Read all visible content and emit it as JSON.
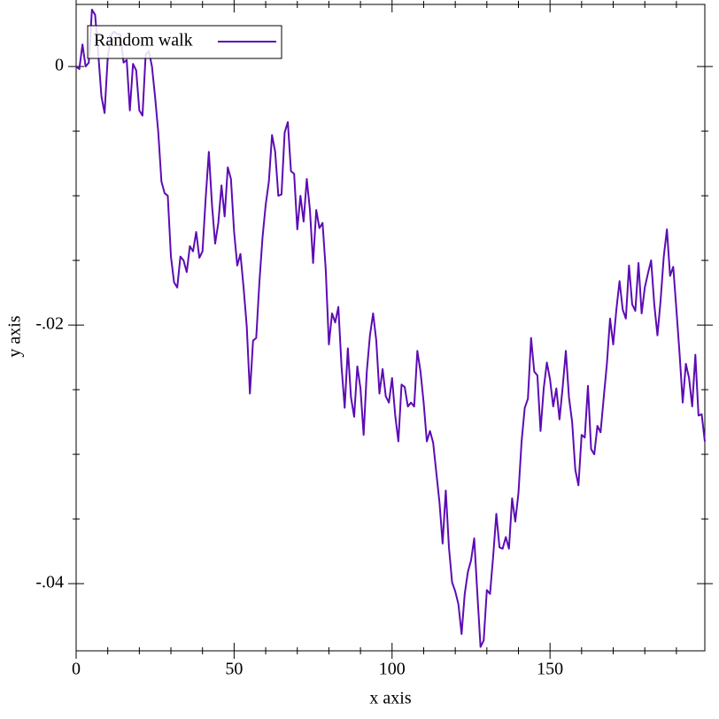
{
  "chart_data": {
    "type": "line",
    "xlabel": "x axis",
    "ylabel": "y axis",
    "x": [
      0,
      1,
      2,
      3,
      4,
      5,
      6,
      7,
      8,
      9,
      10,
      11,
      12,
      13,
      14,
      15,
      16,
      17,
      18,
      19,
      20,
      21,
      22,
      23,
      24,
      25,
      26,
      27,
      28,
      29,
      30,
      31,
      32,
      33,
      34,
      35,
      36,
      37,
      38,
      39,
      40,
      41,
      42,
      43,
      44,
      45,
      46,
      47,
      48,
      49,
      50,
      51,
      52,
      53,
      54,
      55,
      56,
      57,
      58,
      59,
      60,
      61,
      62,
      63,
      64,
      65,
      66,
      67,
      68,
      69,
      70,
      71,
      72,
      73,
      74,
      75,
      76,
      77,
      78,
      79,
      80,
      81,
      82,
      83,
      84,
      85,
      86,
      87,
      88,
      89,
      90,
      91,
      92,
      93,
      94,
      95,
      96,
      97,
      98,
      99,
      100,
      101,
      102,
      103,
      104,
      105,
      106,
      107,
      108,
      109,
      110,
      111,
      112,
      113,
      114,
      115,
      116,
      117,
      118,
      119,
      120,
      121,
      122,
      123,
      124,
      125,
      126,
      127,
      128,
      129,
      130,
      131,
      132,
      133,
      134,
      135,
      136,
      137,
      138,
      139,
      140,
      141,
      142,
      143,
      144,
      145,
      146,
      147,
      148,
      149,
      150,
      151,
      152,
      153,
      154,
      155,
      156,
      157,
      158,
      159,
      160,
      161,
      162,
      163,
      164,
      165,
      166,
      167,
      168,
      169,
      170,
      171,
      172,
      173,
      174,
      175,
      176,
      177,
      178,
      179,
      180,
      181,
      182,
      183,
      184,
      185,
      186,
      187,
      188,
      189,
      190,
      191,
      192,
      193,
      194,
      195,
      196,
      197,
      198,
      199
    ],
    "series": [
      {
        "name": "Random walk",
        "color": "#5c0cb4",
        "values": [
          0,
          -0.0002,
          0.0017,
          0,
          0.0003,
          0.0044,
          0.004,
          0.001,
          -0.0023,
          -0.0036,
          0.0007,
          0.0024,
          0.0027,
          0.0025,
          0.0025,
          0.0003,
          0.0005,
          -0.0034,
          0.0002,
          -0.0003,
          -0.0034,
          -0.0038,
          0.0009,
          0.0012,
          0,
          -0.0024,
          -0.0051,
          -0.0089,
          -0.0098,
          -0.01,
          -0.0147,
          -0.0167,
          -0.0171,
          -0.0147,
          -0.015,
          -0.0159,
          -0.0139,
          -0.0143,
          -0.0128,
          -0.0148,
          -0.0143,
          -0.0102,
          -0.0066,
          -0.0107,
          -0.0137,
          -0.0121,
          -0.0092,
          -0.0116,
          -0.0078,
          -0.0087,
          -0.0128,
          -0.0154,
          -0.0145,
          -0.0171,
          -0.0201,
          -0.0253,
          -0.0212,
          -0.021,
          -0.0167,
          -0.0132,
          -0.0107,
          -0.0089,
          -0.0053,
          -0.0066,
          -0.01,
          -0.0099,
          -0.0051,
          -0.0043,
          -0.0081,
          -0.0083,
          -0.0126,
          -0.01,
          -0.012,
          -0.0087,
          -0.0111,
          -0.0152,
          -0.0111,
          -0.0125,
          -0.0121,
          -0.0157,
          -0.0215,
          -0.0191,
          -0.0198,
          -0.0186,
          -0.0232,
          -0.0264,
          -0.0218,
          -0.0256,
          -0.0271,
          -0.0232,
          -0.0249,
          -0.0285,
          -0.0236,
          -0.0208,
          -0.0191,
          -0.0212,
          -0.0253,
          -0.0234,
          -0.0255,
          -0.026,
          -0.0241,
          -0.027,
          -0.029,
          -0.0246,
          -0.0248,
          -0.0263,
          -0.026,
          -0.0263,
          -0.022,
          -0.0236,
          -0.026,
          -0.029,
          -0.0282,
          -0.0291,
          -0.0314,
          -0.0337,
          -0.0369,
          -0.0328,
          -0.0372,
          -0.0399,
          -0.0406,
          -0.0416,
          -0.0439,
          -0.0408,
          -0.0391,
          -0.0382,
          -0.0365,
          -0.0408,
          -0.0449,
          -0.0444,
          -0.0405,
          -0.0408,
          -0.0379,
          -0.0346,
          -0.0372,
          -0.0373,
          -0.0364,
          -0.0373,
          -0.0334,
          -0.0352,
          -0.033,
          -0.029,
          -0.0264,
          -0.0257,
          -0.021,
          -0.0236,
          -0.0239,
          -0.0282,
          -0.0249,
          -0.0229,
          -0.0242,
          -0.0263,
          -0.0249,
          -0.0273,
          -0.0248,
          -0.022,
          -0.0256,
          -0.0275,
          -0.0312,
          -0.0324,
          -0.0285,
          -0.0287,
          -0.0247,
          -0.0296,
          -0.03,
          -0.0278,
          -0.0283,
          -0.0256,
          -0.023,
          -0.0195,
          -0.0215,
          -0.0188,
          -0.0166,
          -0.0188,
          -0.0195,
          -0.0154,
          -0.0184,
          -0.0189,
          -0.0152,
          -0.0191,
          -0.0171,
          -0.016,
          -0.015,
          -0.0184,
          -0.0208,
          -0.0181,
          -0.0147,
          -0.0126,
          -0.0162,
          -0.0155,
          -0.0188,
          -0.0222,
          -0.026,
          -0.023,
          -0.0241,
          -0.0263,
          -0.0223,
          -0.027,
          -0.0269,
          -0.029
        ]
      }
    ],
    "xlim": [
      0,
      199
    ],
    "ylim": [
      -0.0452,
      0.0048
    ],
    "xticks": [
      0,
      50,
      100,
      150
    ],
    "xminor_ticks": [
      10,
      20,
      30,
      40,
      60,
      70,
      80,
      90,
      110,
      120,
      130,
      140,
      160,
      170,
      180,
      190
    ],
    "yticks": [
      0,
      {
        "value": -0.02,
        "label": "-.02"
      },
      {
        "value": -0.04,
        "label": "-.04"
      }
    ],
    "yminor_ticks": [
      -0.005,
      -0.01,
      -0.015,
      -0.025,
      -0.03,
      -0.035
    ],
    "legend": "top-left"
  }
}
